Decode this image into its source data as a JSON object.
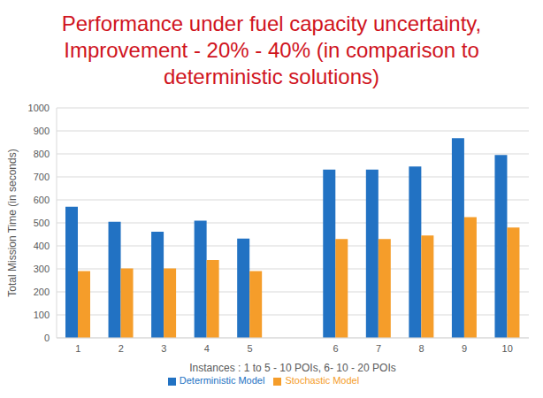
{
  "chart_data": {
    "type": "bar",
    "title": "Performance under fuel capacity uncertainty, Improvement - 20% - 40% (in comparison to deterministic solutions)",
    "x_label": "Instances : 1 to 5 - 10 POIs, 6- 10 - 20 POIs",
    "y_label": "Total Mission Time (in seconds)",
    "categories": [
      "1",
      "2",
      "3",
      "4",
      "5",
      null,
      "6",
      "7",
      "8",
      "9",
      "10"
    ],
    "series": [
      {
        "name": "Deterministic Model",
        "color": "#2272c3",
        "values": [
          570,
          505,
          462,
          510,
          432,
          null,
          732,
          732,
          745,
          868,
          795
        ]
      },
      {
        "name": "Stochastic Model",
        "color": "#f59d2a",
        "values": [
          290,
          302,
          302,
          338,
          290,
          null,
          430,
          430,
          445,
          525,
          480
        ]
      }
    ],
    "ylim": [
      0,
      1000
    ],
    "yticks": [
      0,
      100,
      200,
      300,
      400,
      500,
      600,
      700,
      800,
      900,
      1000
    ],
    "grid": true,
    "legend": "bottom"
  }
}
